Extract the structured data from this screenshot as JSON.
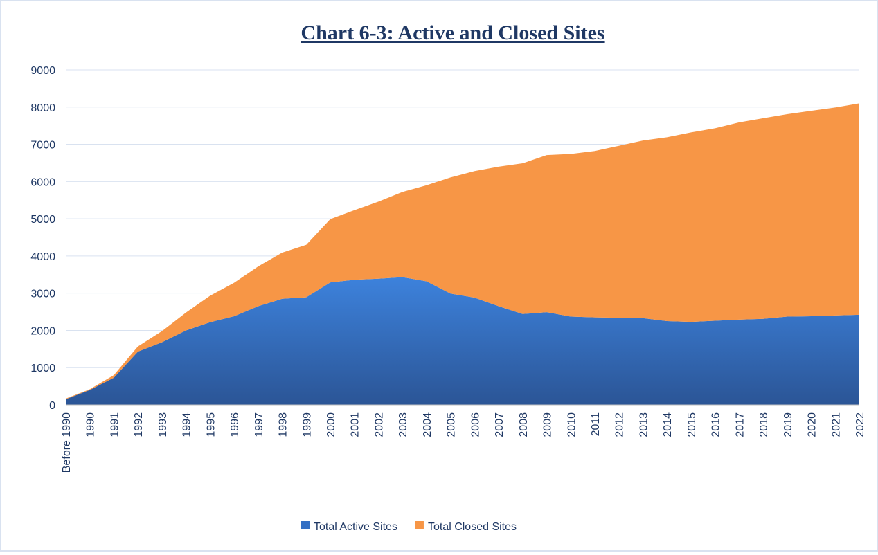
{
  "chart_data": {
    "type": "stacked_area",
    "title": "Chart 6-3: Active and Closed Sites",
    "categories": [
      "Before 1990",
      "1990",
      "1991",
      "1992",
      "1993",
      "1994",
      "1995",
      "1996",
      "1997",
      "1998",
      "1999",
      "2000",
      "2001",
      "2002",
      "2003",
      "2004",
      "2005",
      "2006",
      "2007",
      "2008",
      "2009",
      "2010",
      "2011",
      "2012",
      "2013",
      "2014",
      "2015",
      "2016",
      "2017",
      "2018",
      "2019",
      "2020",
      "2021",
      "2022"
    ],
    "series": [
      {
        "name": "Total Active Sites",
        "color": "#3470c4",
        "values": [
          150,
          400,
          730,
          1430,
          1680,
          2000,
          2220,
          2380,
          2650,
          2850,
          2890,
          3290,
          3360,
          3390,
          3430,
          3320,
          2990,
          2880,
          2650,
          2440,
          2490,
          2370,
          2350,
          2340,
          2330,
          2250,
          2230,
          2260,
          2290,
          2310,
          2370,
          2380,
          2400,
          2420
        ]
      },
      {
        "name": "Total Closed Sites",
        "color": "#f79646",
        "values": [
          20,
          20,
          70,
          140,
          300,
          480,
          710,
          900,
          1070,
          1240,
          1410,
          1700,
          1870,
          2070,
          2290,
          2580,
          3120,
          3400,
          3750,
          4050,
          4220,
          4370,
          4470,
          4620,
          4770,
          4940,
          5090,
          5170,
          5300,
          5390,
          5440,
          5520,
          5590,
          5680
        ]
      }
    ],
    "ylim": [
      0,
      9000
    ],
    "yticks": [
      0,
      1000,
      2000,
      3000,
      4000,
      5000,
      6000,
      7000,
      8000,
      9000
    ],
    "grid": true,
    "legend": "bottom"
  }
}
